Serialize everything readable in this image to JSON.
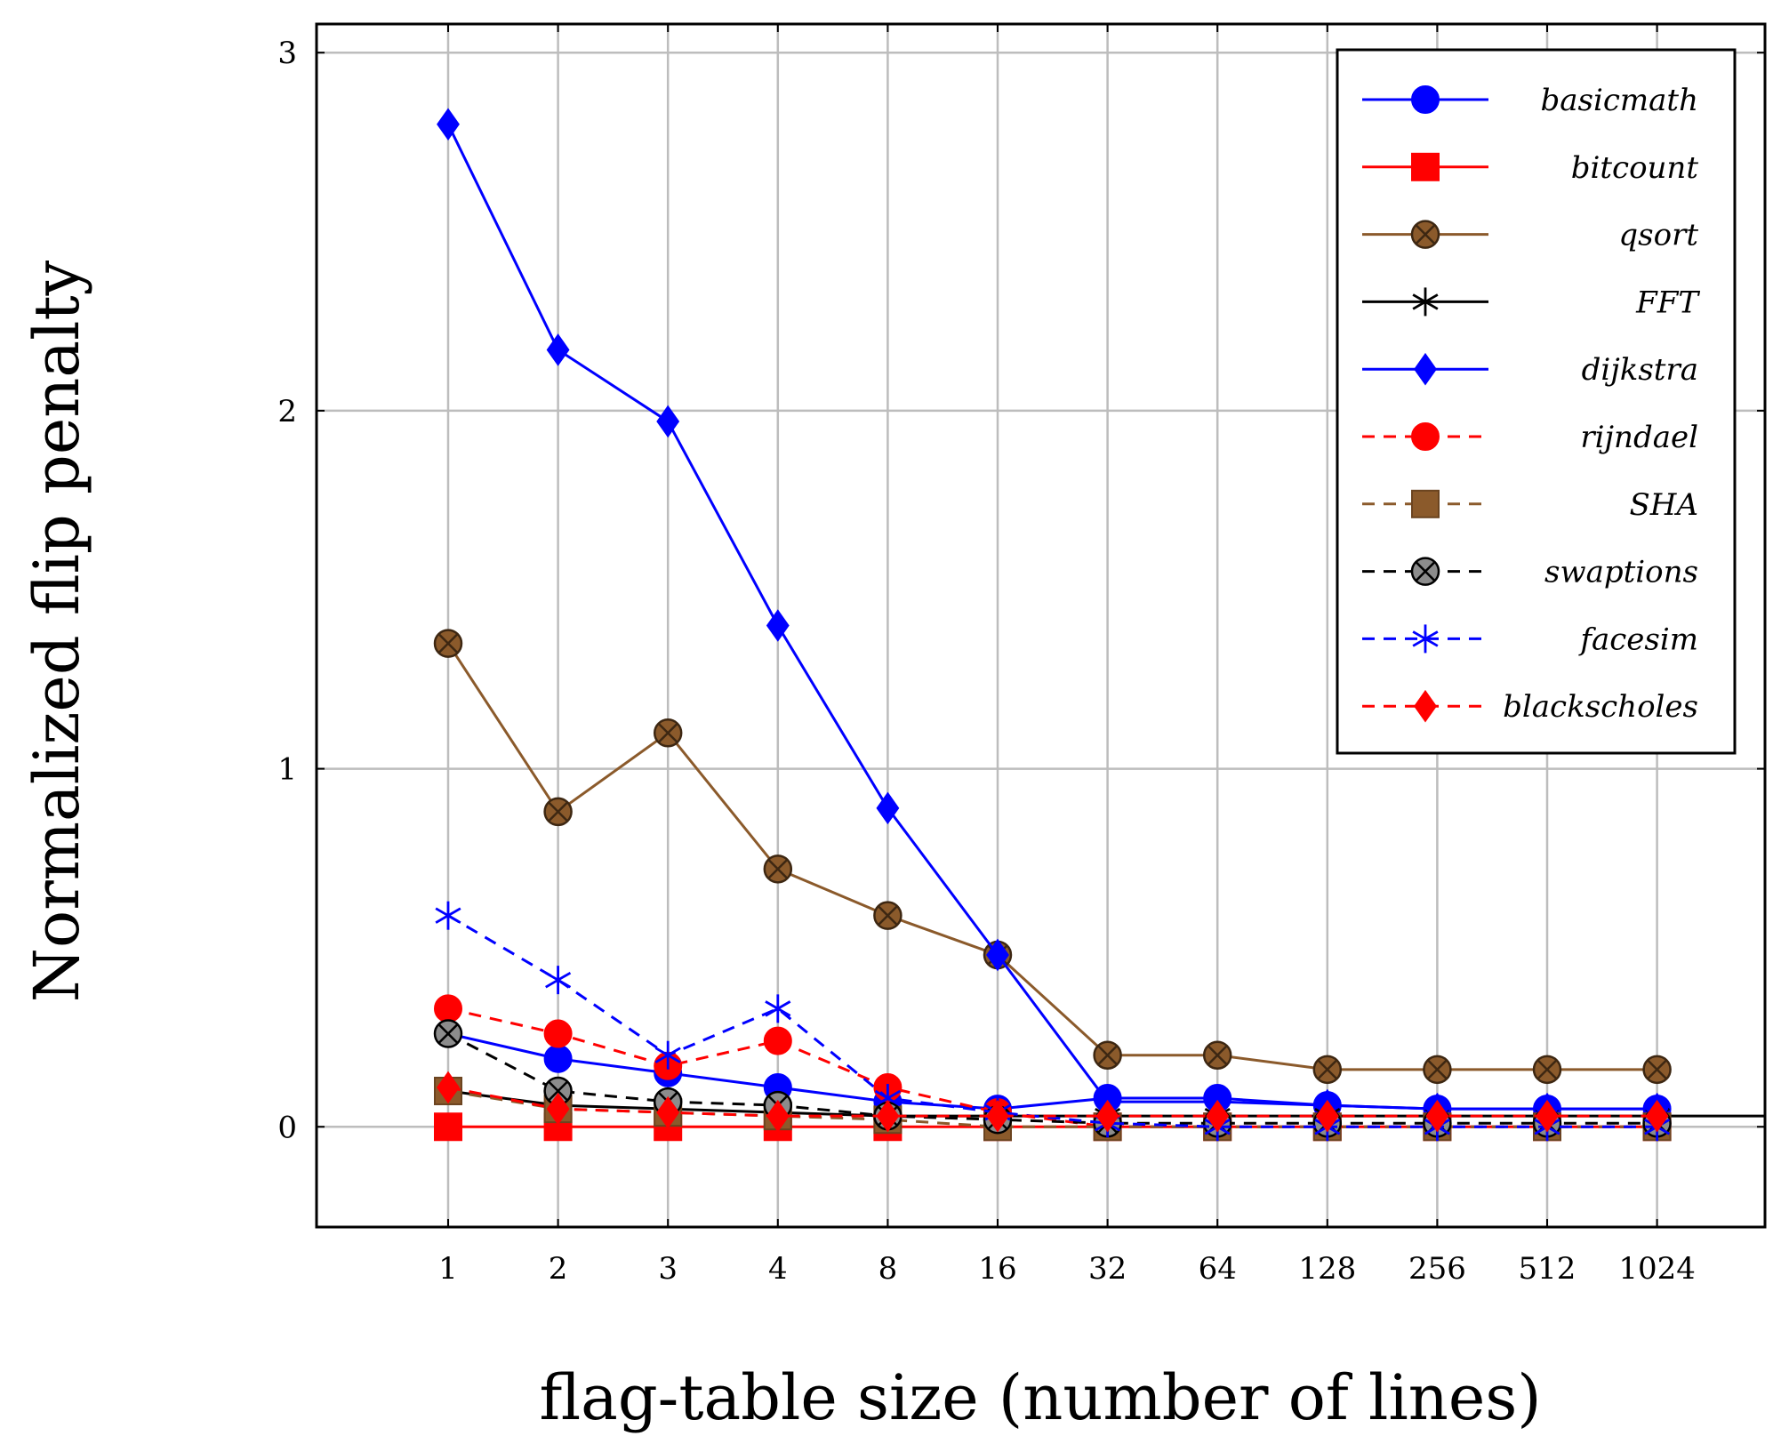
{
  "chart_data": {
    "type": "line",
    "title": "",
    "xlabel": "flag-table size (number of lines)",
    "ylabel": "Normalized flip penalty",
    "categories": [
      "1",
      "2",
      "3",
      "4",
      "8",
      "16",
      "32",
      "64",
      "128",
      "256",
      "512",
      "1024"
    ],
    "yticks": [
      "0",
      "1",
      "2",
      "3"
    ],
    "ylim": [
      -0.28,
      3.08
    ],
    "grid": true,
    "legend_position": "top-right",
    "series": [
      {
        "name": "basicmath",
        "color": "#0000ff",
        "dash": "solid",
        "marker": "circle",
        "values": [
          0.26,
          0.19,
          0.15,
          0.11,
          0.07,
          0.05,
          0.08,
          0.08,
          0.06,
          0.05,
          0.05,
          0.05
        ]
      },
      {
        "name": "bitcount",
        "color": "#ff0000",
        "dash": "solid",
        "marker": "square",
        "values": [
          0,
          0,
          0,
          0,
          0,
          0,
          0,
          0,
          0,
          0,
          0,
          0
        ]
      },
      {
        "name": "qsort",
        "color": "#8b5a2b",
        "dash": "solid",
        "marker": "circle-x",
        "values": [
          1.35,
          0.88,
          1.1,
          0.72,
          0.59,
          0.48,
          0.2,
          0.2,
          0.16,
          0.16,
          0.16,
          0.16
        ]
      },
      {
        "name": "FFT",
        "color": "#000000",
        "dash": "solid",
        "marker": "asterisk",
        "values": [
          0.1,
          0.06,
          0.05,
          0.04,
          0.03,
          0.03,
          0.03,
          0.03,
          0.03,
          0.03,
          0.03,
          0.03
        ]
      },
      {
        "name": "dijkstra",
        "color": "#0000ff",
        "dash": "solid",
        "marker": "diamond",
        "values": [
          2.8,
          2.17,
          1.97,
          1.4,
          0.89,
          0.48,
          0.07,
          0.07,
          0.06,
          0.05,
          0.05,
          0.05
        ]
      },
      {
        "name": "rijndael",
        "color": "#ff0000",
        "dash": "dashed",
        "marker": "circle",
        "values": [
          0.33,
          0.26,
          0.17,
          0.24,
          0.11,
          0.04,
          0.0,
          0.0,
          0.0,
          0.0,
          0.0,
          0.0
        ]
      },
      {
        "name": "SHA",
        "color": "#8b5a2b",
        "dash": "dashed",
        "marker": "square",
        "values": [
          0.1,
          0.05,
          0.04,
          0.03,
          0.02,
          0.0,
          0.0,
          0.0,
          0.0,
          0.0,
          0.0,
          0.0
        ]
      },
      {
        "name": "swaptions",
        "color": "#000000",
        "dash": "dashed",
        "marker": "circle-x-gray",
        "values": [
          0.26,
          0.1,
          0.07,
          0.06,
          0.03,
          0.02,
          0.01,
          0.01,
          0.01,
          0.01,
          0.01,
          0.01
        ]
      },
      {
        "name": "facesim",
        "color": "#0000ff",
        "dash": "dashed",
        "marker": "asterisk",
        "values": [
          0.59,
          0.41,
          0.2,
          0.33,
          0.08,
          0.04,
          0.01,
          0.0,
          0.0,
          0.0,
          0.0,
          0.0
        ]
      },
      {
        "name": "blackscholes",
        "color": "#ff0000",
        "dash": "dashed",
        "marker": "diamond",
        "values": [
          0.11,
          0.05,
          0.04,
          0.03,
          0.03,
          0.03,
          0.03,
          0.03,
          0.03,
          0.03,
          0.03,
          0.03
        ]
      }
    ]
  }
}
